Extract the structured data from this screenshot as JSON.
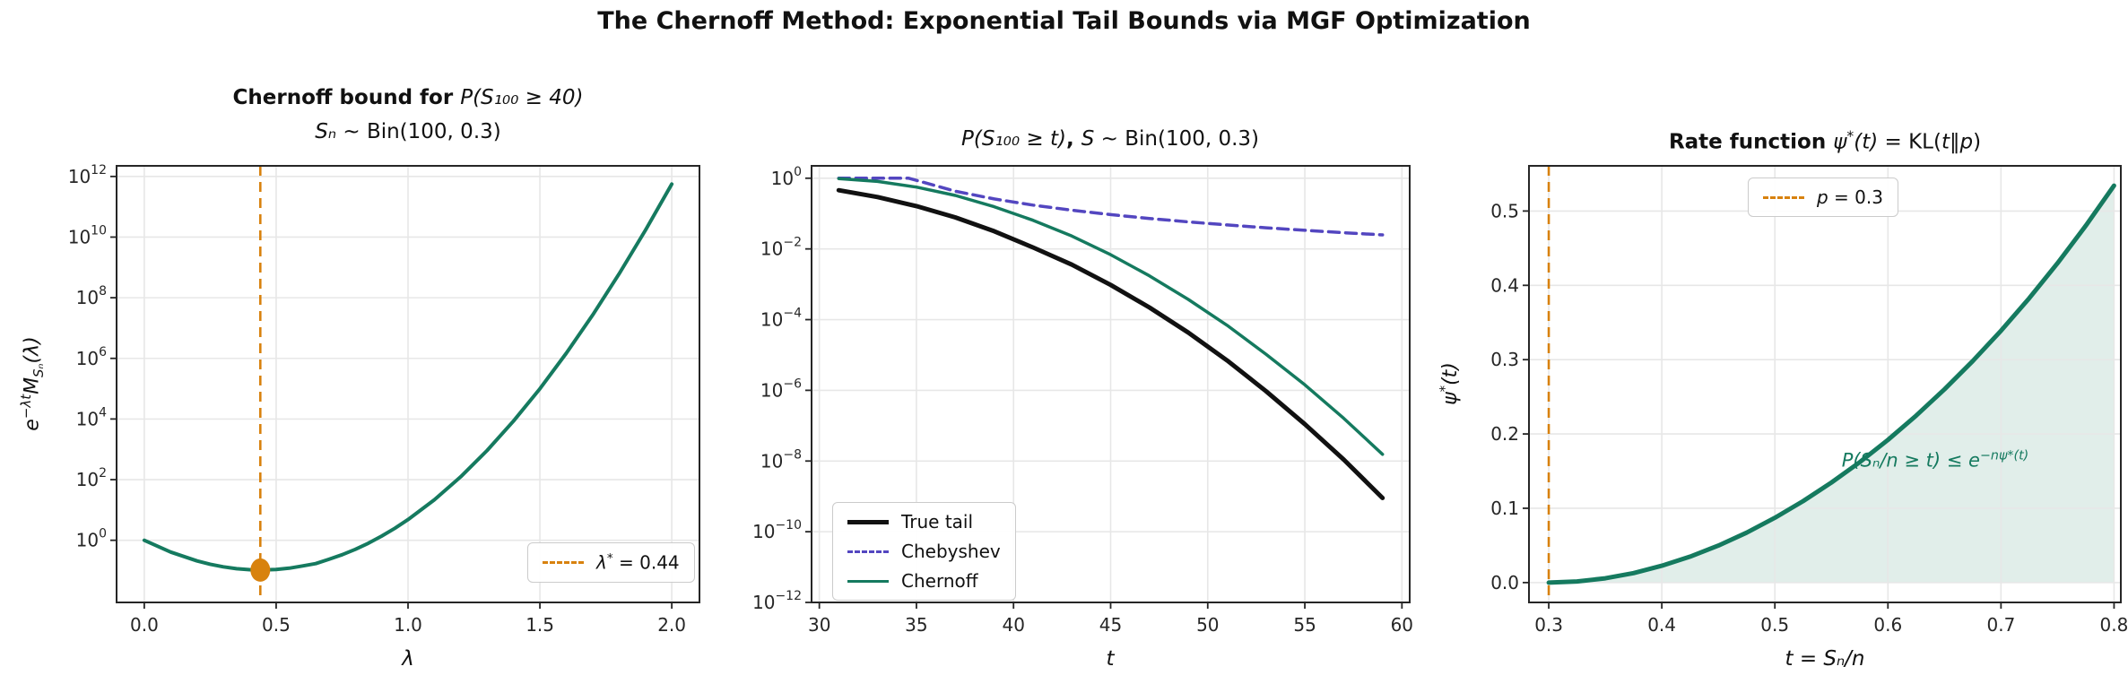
{
  "figure": {
    "title": "The Chernoff Method: Exponential Tail Bounds via MGF Optimization",
    "background": "#ffffff",
    "grid_color": "#e7e7e7",
    "accent_orange": "#d8820e",
    "accent_teal": "#157a5f",
    "accent_purple": "#5346c0"
  },
  "chart_data": [
    {
      "type": "line",
      "title_bold": "Chernoff bound for ",
      "title_math": "P(S₁₀₀ ≥ 40)",
      "subtitle_math": "Sₙ",
      "subtitle_rest": " ∼ Bin(100, 0.3)",
      "xlabel": "λ",
      "ylabel": {
        "base": "e",
        "sup": "−λt",
        "m": "M",
        "sub": "Sₙ",
        "tail": "(λ)"
      },
      "yscale": "log",
      "xlim": [
        -0.105,
        2.105
      ],
      "ylim_t": [
        -2.05,
        12.35
      ],
      "xticks": {
        "values": [
          0,
          0.5,
          1,
          1.5,
          2
        ],
        "labels": [
          "0.0",
          "0.5",
          "1.0",
          "1.5",
          "2.0"
        ]
      },
      "yticks": {
        "exponents": [
          0,
          2,
          4,
          6,
          8,
          10,
          12
        ],
        "labels": [
          "0",
          "2",
          "4",
          "6",
          "8",
          "10",
          "12"
        ]
      },
      "grid": true,
      "series": [
        {
          "name": "chernoff-bound-vs-lambda",
          "color": "#157a5f",
          "width": 4,
          "dash": "solid",
          "x": [
            0,
            0.1,
            0.2,
            0.25,
            0.3,
            0.35,
            0.4,
            0.44,
            0.45,
            0.5,
            0.55,
            0.6,
            0.65,
            0.7,
            0.75,
            0.8,
            0.85,
            0.9,
            0.95,
            1.0,
            1.1,
            1.2,
            1.3,
            1.4,
            1.5,
            1.6,
            1.7,
            1.8,
            1.9,
            2.0
          ],
          "y": [
            1.0,
            0.409,
            0.208,
            0.162,
            0.133,
            0.115,
            0.107,
            0.104,
            0.105,
            0.109,
            0.12,
            0.142,
            0.17,
            0.235,
            0.333,
            0.501,
            0.805,
            1.37,
            2.49,
            4.82,
            21.7,
            125,
            918,
            8550,
            100000,
            1480000,
            26900000,
            608000000,
            16700000000,
            558000000000
          ]
        }
      ],
      "vlines": [
        {
          "x": 0.44,
          "color": "#d8820e"
        }
      ],
      "markers": [
        {
          "x": 0.44,
          "y": 0.104,
          "color": "#d8820e"
        }
      ],
      "optimum": {
        "lambda_star": 0.44,
        "min_bound": 0.104
      },
      "legend": {
        "position": "lower right",
        "entries": [
          {
            "sample": {
              "color": "#d8820e",
              "width": 3,
              "dash": "dashed"
            },
            "label_pre": "λ",
            "label_sup": "*",
            "label_post": " = 0.44"
          }
        ]
      }
    },
    {
      "type": "line",
      "title": {
        "math1": "P(S₁₀₀ ≥ t)",
        "comma": ", ",
        "math2": "S",
        "rest": " ∼ Bin(100, 0.3)"
      },
      "xlabel": "t",
      "yscale": "log",
      "xlim": [
        29.6,
        60.4
      ],
      "ylim_t": [
        -12,
        0.35
      ],
      "xticks": {
        "values": [
          30,
          35,
          40,
          45,
          50,
          55,
          60
        ],
        "labels": [
          "30",
          "35",
          "40",
          "45",
          "50",
          "55",
          "60"
        ]
      },
      "yticks": {
        "exponents": [
          0,
          -2,
          -4,
          -6,
          -8,
          -10,
          -12
        ],
        "labels": [
          "0",
          "−2",
          "−4",
          "−6",
          "−8",
          "−10",
          "−12"
        ]
      },
      "grid": true,
      "series": [
        {
          "name": "true-tail",
          "color": "#111111",
          "width": 5,
          "dash": "solid",
          "x": [
            31,
            33,
            35,
            37,
            39,
            41,
            43,
            45,
            47,
            49,
            51,
            53,
            55,
            57,
            59
          ],
          "y": [
            0.457,
            0.293,
            0.163,
            0.0781,
            0.0318,
            0.011,
            0.0036,
            0.00096,
            0.00022,
            4.3e-05,
            7e-06,
            9.5e-07,
            1.1e-07,
            1.1e-08,
            9e-10
          ]
        },
        {
          "name": "chebyshev-bound",
          "color": "#5346c0",
          "width": 3.5,
          "dash": "dashed",
          "x": [
            31,
            33,
            34.6,
            37,
            39,
            41,
            43,
            45,
            47,
            49,
            51,
            53,
            55,
            57,
            59
          ],
          "y": [
            1.0,
            1.0,
            1.0,
            0.4286,
            0.2593,
            0.1736,
            0.1243,
            0.0933,
            0.0727,
            0.0582,
            0.0476,
            0.0397,
            0.0336,
            0.0288,
            0.025
          ]
        },
        {
          "name": "chernoff-bound",
          "color": "#157a5f",
          "width": 3.5,
          "dash": "solid",
          "x": [
            31,
            33,
            35,
            37,
            39,
            41,
            43,
            45,
            47,
            49,
            51,
            53,
            55,
            57,
            59
          ],
          "y": [
            0.977,
            0.81,
            0.561,
            0.326,
            0.156,
            0.0648,
            0.0231,
            0.00687,
            0.00173,
            0.000373,
            6.88e-05,
            1.05e-05,
            1.43e-06,
            1.62e-07,
            1.55e-08
          ]
        }
      ],
      "legend": {
        "position": "lower left",
        "entries": [
          {
            "sample": {
              "color": "#111111",
              "width": 5,
              "dash": "solid"
            },
            "label": "True tail"
          },
          {
            "sample": {
              "color": "#5346c0",
              "width": 3.5,
              "dash": "dashed"
            },
            "label": "Chebyshev"
          },
          {
            "sample": {
              "color": "#157a5f",
              "width": 3.5,
              "dash": "solid"
            },
            "label": "Chernoff"
          }
        ]
      }
    },
    {
      "type": "area",
      "title": {
        "bold": "Rate function ",
        "psi": "ψ",
        "star": "*",
        "arg": "(t)",
        "mid": " = KL(",
        "inner": "t‖p",
        "close": ")"
      },
      "xlabel": "t = Sₙ/n",
      "ylabel": {
        "psi": "ψ",
        "sup": "*",
        "tail": "(t)"
      },
      "yscale": "linear",
      "xlim": [
        0.2825,
        0.806
      ],
      "ylim_t": [
        -0.0267,
        0.5608
      ],
      "xticks": {
        "values": [
          0.3,
          0.4,
          0.5,
          0.6,
          0.7,
          0.8
        ],
        "labels": [
          "0.3",
          "0.4",
          "0.5",
          "0.6",
          "0.7",
          "0.8"
        ]
      },
      "yticks": {
        "values": [
          0,
          0.1,
          0.2,
          0.3,
          0.4,
          0.5
        ],
        "labels": [
          "0.0",
          "0.1",
          "0.2",
          "0.3",
          "0.4",
          "0.5"
        ]
      },
      "grid": true,
      "series": [
        {
          "name": "rate-function-kl",
          "color": "#157a5f",
          "width": 5,
          "dash": "solid",
          "fill": true,
          "fill_opacity": 0.13,
          "fill_baseline": 0,
          "x": [
            0.3,
            0.325,
            0.35,
            0.375,
            0.4,
            0.425,
            0.45,
            0.475,
            0.5,
            0.525,
            0.55,
            0.575,
            0.6,
            0.625,
            0.65,
            0.675,
            0.7,
            0.725,
            0.75,
            0.775,
            0.8
          ],
          "y": [
            0,
            0.0015,
            0.0058,
            0.0128,
            0.0226,
            0.0349,
            0.0498,
            0.0672,
            0.0872,
            0.1096,
            0.1346,
            0.162,
            0.192,
            0.2247,
            0.26,
            0.2981,
            0.3389,
            0.3828,
            0.4298,
            0.4802,
            0.5341
          ]
        }
      ],
      "vlines": [
        {
          "x": 0.3,
          "color": "#d8820e"
        }
      ],
      "legend": {
        "position": "upper center",
        "entries": [
          {
            "sample": {
              "color": "#d8820e",
              "width": 3,
              "dash": "dashed"
            },
            "label_pre": "p",
            "label_post": " = 0.3"
          }
        ]
      },
      "annotation": {
        "main": "P(Sₙ/n ≥ t) ≤ e",
        "sup": "−nψ*(t)",
        "color": "#157a5f"
      }
    }
  ]
}
